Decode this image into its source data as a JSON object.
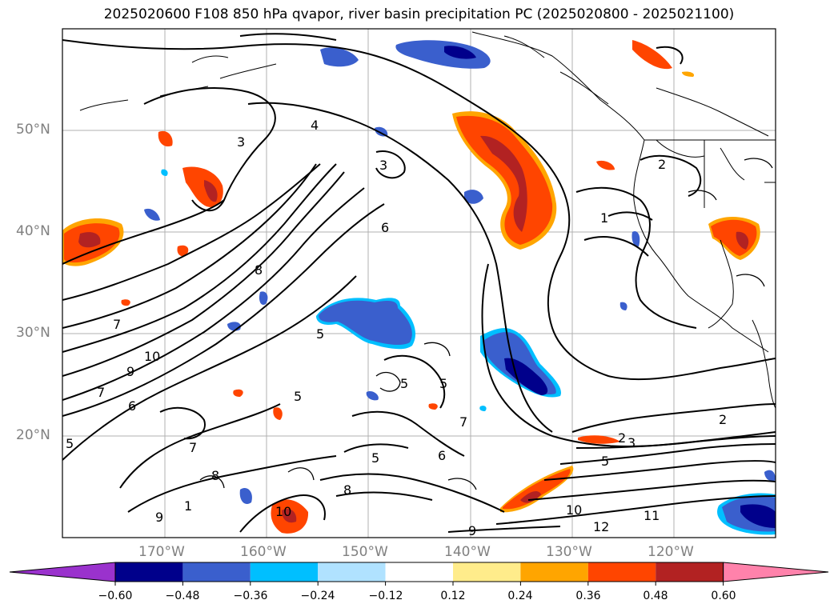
{
  "title": "2025020600 F108 850 hPa qvapor, river basin precipitation PC (2025020800 - 2025021100)",
  "map": {
    "lat_labels": [
      "50°N",
      "40°N",
      "30°N",
      "20°N"
    ],
    "lon_labels": [
      "170°W",
      "160°W",
      "150°W",
      "140°W",
      "130°W",
      "120°W"
    ],
    "contour_labels": [
      "4",
      "3",
      "3",
      "6",
      "8",
      "7",
      "10",
      "9",
      "7",
      "6",
      "5",
      "5",
      "5",
      "5",
      "7",
      "5",
      "6",
      "8",
      "9",
      "8",
      "7",
      "10",
      "9",
      "12",
      "11",
      "10",
      "1",
      "2",
      "2",
      "3",
      "5",
      "1"
    ]
  },
  "colorbar": {
    "ticks": [
      "−0.60",
      "−0.48",
      "−0.36",
      "−0.24",
      "−0.12",
      "0.12",
      "0.24",
      "0.36",
      "0.48",
      "0.60"
    ],
    "colors": [
      "#9a32cd",
      "#00008b",
      "#3a5fcd",
      "#00bfff",
      "#b0e2ff",
      "#ffffff",
      "#ffec8b",
      "#ffa500",
      "#ff4500",
      "#b22222",
      "#ff82ab"
    ],
    "extend": "both"
  },
  "colors": {
    "negative_strong": "#00008b",
    "negative_mid": "#3a5fcd",
    "negative_light": "#00bfff",
    "positive_mid": "#ff4500",
    "positive_strong": "#b22222",
    "positive_light": "#ffa500",
    "grid": "#b0b0b0"
  }
}
